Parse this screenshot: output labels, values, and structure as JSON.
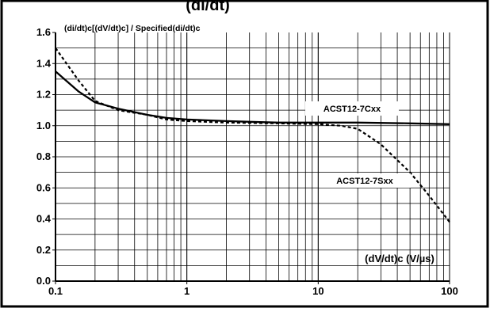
{
  "header_fragment": "(di/dt)",
  "chart_data": {
    "type": "line",
    "title": "",
    "ylabel": "(di/dt)c[(dV/dt)c] / Specified(di/dt)c",
    "xlabel": "(dV/dt)c (V/µs)",
    "x_scale": "log",
    "xlim": [
      0.1,
      100
    ],
    "ylim": [
      0.0,
      1.6
    ],
    "grid": true,
    "x_ticks": [
      0.1,
      1,
      10,
      100
    ],
    "x_tick_labels": [
      "0.1",
      "1",
      "10",
      "100"
    ],
    "y_ticks": [
      0.0,
      0.2,
      0.4,
      0.6,
      0.8,
      1.0,
      1.2,
      1.4,
      1.6
    ],
    "y_tick_labels": [
      "0.0",
      "0.2",
      "0.4",
      "0.6",
      "0.8",
      "1.0",
      "1.2",
      "1.4",
      "1.6"
    ],
    "series": [
      {
        "name": "ACST12-7Cxx",
        "style": "solid",
        "x": [
          0.1,
          0.15,
          0.2,
          0.3,
          0.5,
          0.7,
          1,
          2,
          3,
          5,
          10,
          20,
          50,
          100
        ],
        "y": [
          1.35,
          1.22,
          1.15,
          1.11,
          1.07,
          1.05,
          1.04,
          1.03,
          1.025,
          1.02,
          1.02,
          1.02,
          1.015,
          1.01
        ]
      },
      {
        "name": "ACST12-7Sxx",
        "style": "dashed",
        "x": [
          0.1,
          0.15,
          0.2,
          0.3,
          0.5,
          0.7,
          1,
          2,
          5,
          10,
          15,
          20,
          30,
          50,
          70,
          100
        ],
        "y": [
          1.5,
          1.29,
          1.16,
          1.1,
          1.07,
          1.04,
          1.03,
          1.02,
          1.015,
          1.01,
          1.0,
          0.98,
          0.88,
          0.7,
          0.55,
          0.38
        ]
      }
    ]
  }
}
